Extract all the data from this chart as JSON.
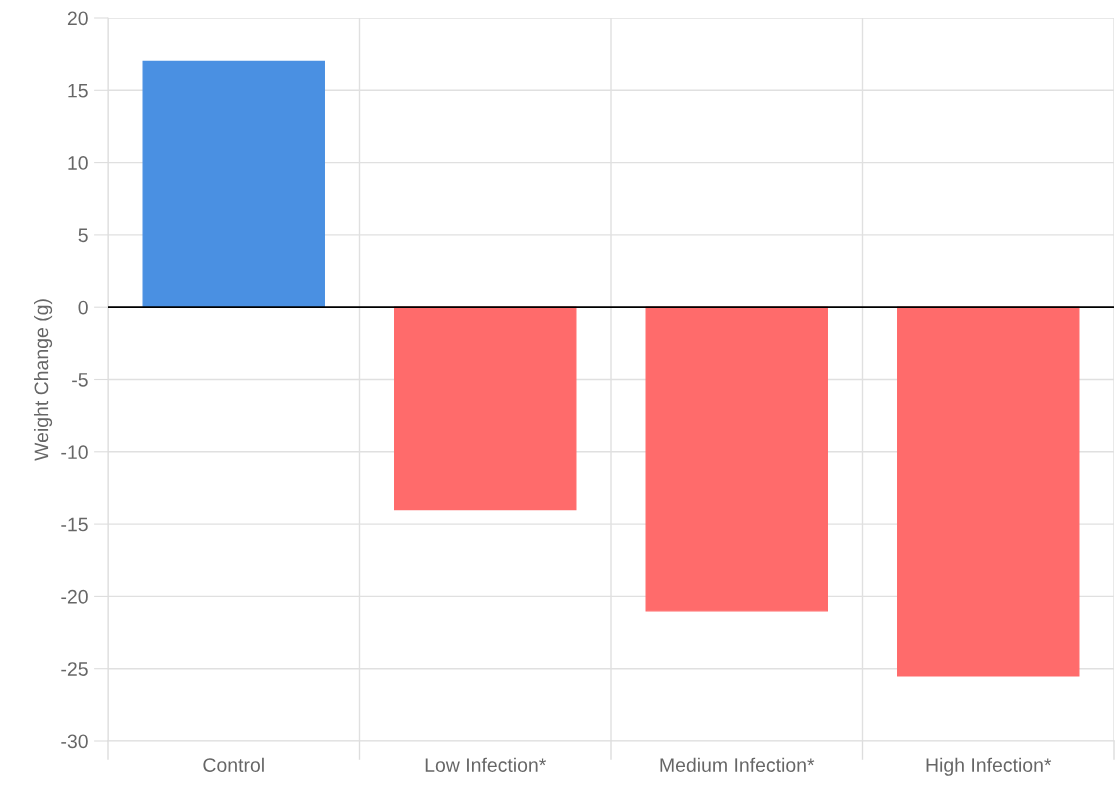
{
  "chart_data": {
    "type": "bar",
    "categories": [
      "Control",
      "Low Infection*",
      "Medium Infection*",
      "High Infection*"
    ],
    "values": [
      17,
      -14,
      -21,
      -25.5
    ],
    "colors": [
      "#4a90e2",
      "#ff6b6b",
      "#ff6b6b",
      "#ff6b6b"
    ],
    "ylabel": "Weight Change (g)",
    "ylim": [
      -30,
      20
    ],
    "yticks": [
      -30,
      -25,
      -20,
      -15,
      -10,
      -5,
      0,
      5,
      10,
      15,
      20
    ],
    "grid": true,
    "legend": false,
    "ref_lines": [
      {
        "axis": "y",
        "value": 0,
        "color": "#000000"
      }
    ]
  }
}
